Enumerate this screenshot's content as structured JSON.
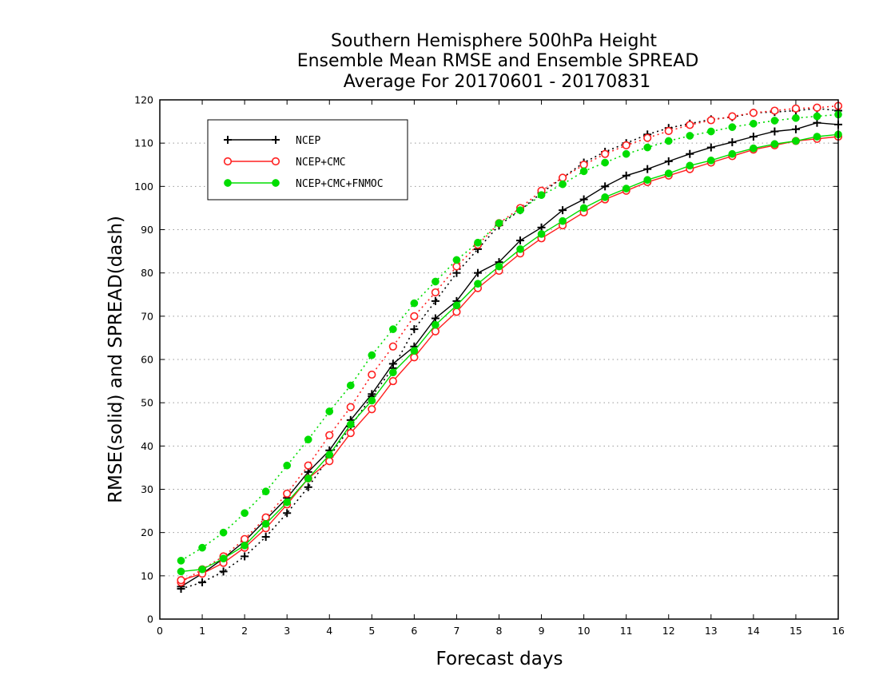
{
  "chart_data": {
    "type": "line",
    "title": [
      "Southern Hemisphere 500hPa Height",
      "Ensemble Mean RMSE and Ensemble SPREAD",
      "Average For 20170601 - 20170831"
    ],
    "xlabel": "Forecast days",
    "ylabel": "RMSE(solid) and SPREAD(dash)",
    "xlim": [
      0,
      16
    ],
    "ylim": [
      0,
      120
    ],
    "x_ticks": [
      0,
      1,
      2,
      3,
      4,
      5,
      6,
      7,
      8,
      9,
      10,
      11,
      12,
      13,
      14,
      15,
      16
    ],
    "y_ticks": [
      0,
      10,
      20,
      30,
      40,
      50,
      60,
      70,
      80,
      90,
      100,
      110,
      120
    ],
    "grid": "horizontal dotted",
    "legend_position": "top-left",
    "x": [
      0.5,
      1,
      1.5,
      2,
      2.5,
      3,
      3.5,
      4,
      4.5,
      5,
      5.5,
      6,
      6.5,
      7,
      7.5,
      8,
      8.5,
      9,
      9.5,
      10,
      10.5,
      11,
      11.5,
      12,
      12.5,
      13,
      13.5,
      14,
      14.5,
      15,
      15.5,
      16
    ],
    "series": [
      {
        "name": "NCEP",
        "color": "#000000",
        "marker": "plus",
        "rmse": [
          7.5,
          10.5,
          14,
          18,
          23,
          28,
          34,
          39,
          46,
          52,
          59,
          63,
          69.5,
          73.5,
          80,
          82.5,
          87.5,
          90.5,
          94.5,
          97,
          100,
          102.5,
          104,
          105.8,
          107.5,
          109,
          110.2,
          111.5,
          112.7,
          113.2,
          114.7,
          114.3
        ],
        "spread": [
          7,
          8.5,
          11,
          14.5,
          19,
          24.5,
          30.5,
          37.5,
          44.5,
          51.5,
          58,
          67,
          73.5,
          80,
          85.5,
          91,
          94.5,
          98.5,
          102,
          105.5,
          108,
          110,
          112,
          113.5,
          114.5,
          115.5,
          116,
          117,
          117.2,
          117.5,
          118,
          117.5
        ]
      },
      {
        "name": "NCEP+CMC",
        "color": "#ff2020",
        "marker": "open-circle",
        "rmse": [
          9,
          10.5,
          13,
          16.5,
          21,
          26.5,
          32.5,
          36.5,
          43,
          48.5,
          55,
          60.5,
          66.5,
          71,
          76.5,
          80.5,
          84.5,
          88,
          91,
          94,
          97,
          99,
          101,
          102.5,
          104,
          105.5,
          107,
          108.5,
          109.5,
          110.5,
          111,
          111.5
        ],
        "spread": [
          8.5,
          11.5,
          14.5,
          18.5,
          23.5,
          29,
          35.5,
          42.5,
          49,
          56.5,
          63,
          70,
          75.5,
          81.5,
          86.5,
          91.5,
          95,
          99,
          102,
          105,
          107.5,
          109.5,
          111.2,
          112.8,
          114.2,
          115.3,
          116.2,
          117,
          117.5,
          118,
          118.2,
          118.6
        ]
      },
      {
        "name": "NCEP+CMC+FNMOC",
        "color": "#00dd00",
        "marker": "filled-circle",
        "rmse": [
          11,
          11.5,
          14,
          17,
          22,
          27,
          32.5,
          38,
          45,
          50.5,
          57,
          62,
          68,
          72.5,
          77.5,
          81.5,
          85.5,
          89,
          92,
          95,
          97.5,
          99.5,
          101.5,
          103,
          104.8,
          106,
          107.5,
          108.8,
          109.8,
          110.5,
          111.5,
          112
        ],
        "spread": [
          13.5,
          16.5,
          20,
          24.5,
          29.5,
          35.5,
          41.5,
          48,
          54,
          61,
          67,
          73,
          78,
          83,
          87,
          91.5,
          94.5,
          98,
          100.5,
          103.5,
          105.5,
          107.5,
          109,
          110.5,
          111.7,
          112.7,
          113.7,
          114.5,
          115.2,
          115.8,
          116.2,
          116.6
        ]
      }
    ]
  }
}
